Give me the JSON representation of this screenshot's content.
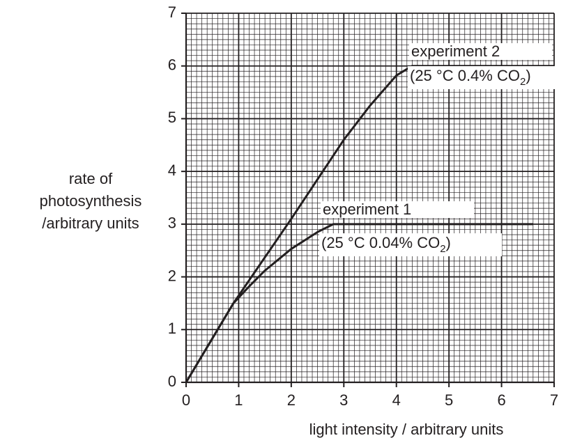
{
  "chart_data": {
    "type": "line",
    "ylabel": [
      "rate of",
      "photosynthesis",
      "/arbitrary units"
    ],
    "xlabel": "light intensity / arbitrary units",
    "xlim": [
      0,
      7
    ],
    "ylim": [
      0,
      7
    ],
    "xticks": [
      0,
      1,
      2,
      3,
      4,
      5,
      6,
      7
    ],
    "yticks": [
      0,
      1,
      2,
      3,
      4,
      5,
      6,
      7
    ],
    "grid": true,
    "minor_divisions": 10,
    "series": [
      {
        "name": "experiment 1",
        "color": "#231f20",
        "condition": [
          "(25 °C   0.04% CO",
          "2",
          ")"
        ],
        "x": [
          0,
          0.9,
          1.2,
          1.5,
          2,
          2.5,
          2.8,
          6.6
        ],
        "values": [
          0,
          1.5,
          1.82,
          2.12,
          2.53,
          2.85,
          3,
          3
        ]
      },
      {
        "name": "experiment 2",
        "color": "#231f20",
        "condition": [
          "(25 °C   0.4% CO",
          "2",
          ")"
        ],
        "x": [
          0,
          0.9,
          2,
          3,
          3.5,
          4,
          4.3,
          7
        ],
        "values": [
          0,
          1.5,
          3.1,
          4.6,
          5.25,
          5.82,
          6,
          6
        ]
      }
    ]
  }
}
